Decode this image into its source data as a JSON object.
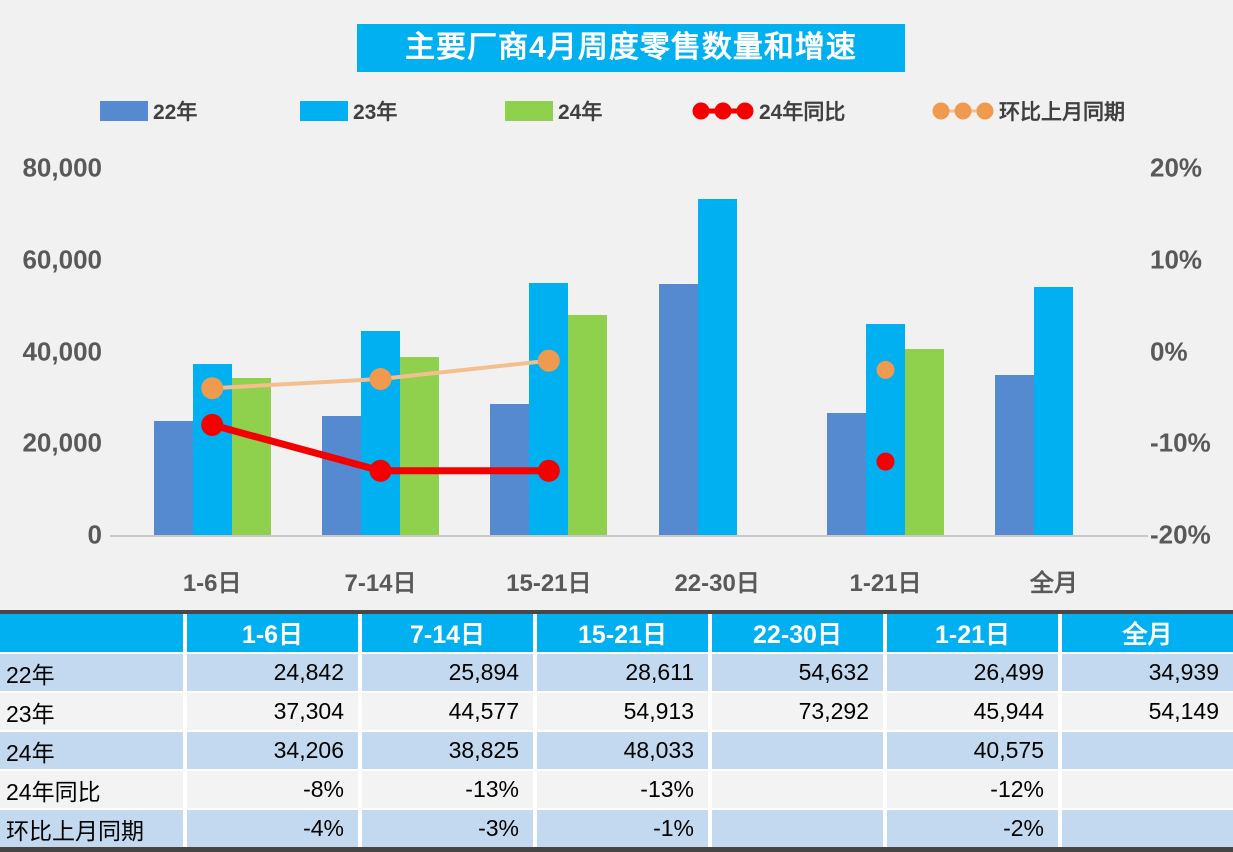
{
  "title": "主要厂商4月周度零售数量和增速",
  "colors": {
    "background": "#F1F1F1",
    "title_bg": "#00B0F0",
    "bar_blue_22": "#5589D0",
    "bar_cyan_23": "#00B0F0",
    "bar_green_24": "#8FD04D",
    "line_red": "#F40000",
    "line_orange_stroke": "#F5BE8E",
    "line_orange_marker": "#EF9A4F",
    "table_header_bg": "#00B0F0",
    "table_row_blue": "#C3D9F0",
    "table_row_plain": "#F3F3F3",
    "axis_text": "#595959",
    "table_border": "#474747"
  },
  "legend": [
    {
      "label": "22年",
      "type": "bar",
      "color": "#5589D0"
    },
    {
      "label": "23年",
      "type": "bar",
      "color": "#00B0F0"
    },
    {
      "label": "24年",
      "type": "bar",
      "color": "#8FD04D"
    },
    {
      "label": "24年同比",
      "type": "line",
      "marker_color": "#F40000",
      "stroke_color": "#F40000"
    },
    {
      "label": "环比上月同期",
      "type": "line",
      "marker_color": "#EF9A4F",
      "stroke_color": "#F5BE8E"
    }
  ],
  "chart_data": {
    "type": "bar",
    "title": "主要厂商4月周度零售数量和增速",
    "categories": [
      "1-6日",
      "7-14日",
      "15-21日",
      "22-30日",
      "1-21日",
      "全月"
    ],
    "series": [
      {
        "name": "22年",
        "kind": "bar",
        "color": "#5589D0",
        "values": [
          24842,
          25894,
          28611,
          54632,
          26499,
          34939
        ]
      },
      {
        "name": "23年",
        "kind": "bar",
        "color": "#00B0F0",
        "values": [
          37304,
          44577,
          54913,
          73292,
          45944,
          54149
        ]
      },
      {
        "name": "24年",
        "kind": "bar",
        "color": "#8FD04D",
        "values": [
          34206,
          38825,
          48033,
          null,
          40575,
          null
        ]
      },
      {
        "name": "24年同比",
        "kind": "line",
        "axis": "right",
        "stroke": "#F40000",
        "marker": "#F40000",
        "stroke_width": 7,
        "values": [
          -8,
          -13,
          -13,
          null,
          -12,
          null
        ]
      },
      {
        "name": "环比上月同期",
        "kind": "line",
        "axis": "right",
        "stroke": "#F5BE8E",
        "marker": "#EF9A4F",
        "stroke_width": 4,
        "values": [
          -4,
          -3,
          -1,
          null,
          -2,
          null
        ]
      }
    ],
    "left_axis": {
      "label": "",
      "min": 0,
      "max": 80000,
      "ticks": [
        "80,000",
        "60,000",
        "40,000",
        "20,000",
        "0"
      ]
    },
    "right_axis": {
      "label": "",
      "min": -20,
      "max": 20,
      "ticks": [
        "20%",
        "10%",
        "0%",
        "-10%",
        "-20%"
      ]
    },
    "grid": false,
    "legend_position": "top"
  },
  "table": {
    "header": [
      "",
      "1-6日",
      "7-14日",
      "15-21日",
      "22-30日",
      "1-21日",
      "全月"
    ],
    "rows": [
      {
        "label": "22年",
        "cells": [
          "24,842",
          "25,894",
          "28,611",
          "54,632",
          "26,499",
          "34,939"
        ]
      },
      {
        "label": "23年",
        "cells": [
          "37,304",
          "44,577",
          "54,913",
          "73,292",
          "45,944",
          "54,149"
        ]
      },
      {
        "label": "24年",
        "cells": [
          "34,206",
          "38,825",
          "48,033",
          "",
          "40,575",
          ""
        ]
      },
      {
        "label": "24年同比",
        "cells": [
          "-8%",
          "-13%",
          "-13%",
          "",
          "-12%",
          ""
        ]
      },
      {
        "label": "环比上月同期",
        "cells": [
          "-4%",
          "-3%",
          "-1%",
          "",
          "-2%",
          ""
        ]
      }
    ]
  }
}
